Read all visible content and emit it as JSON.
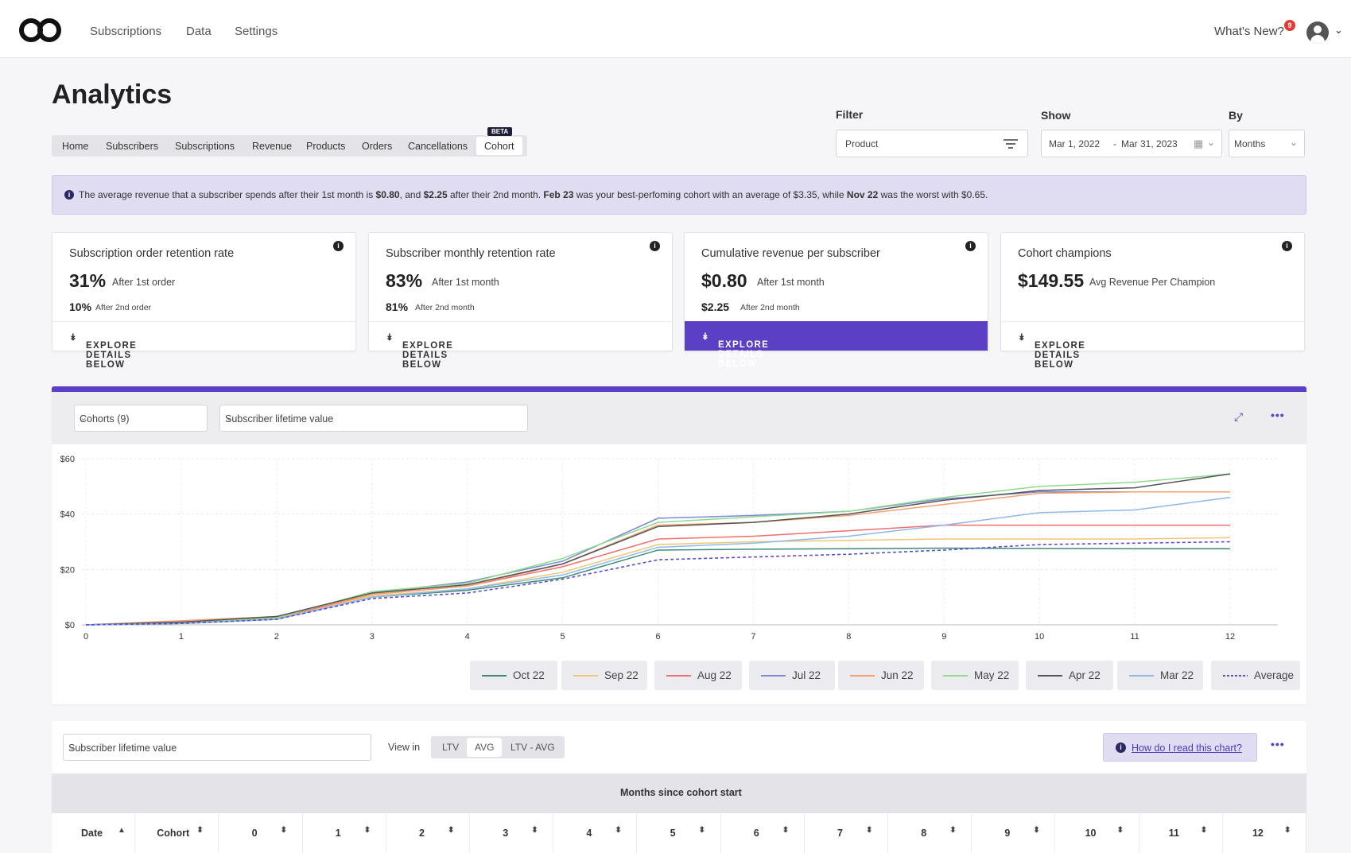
{
  "nav": {
    "items": [
      "Subscriptions",
      "Data",
      "Settings"
    ],
    "whats_new": "What's New?",
    "notification_count": "9"
  },
  "page": {
    "title": "Analytics"
  },
  "subtabs": {
    "items": [
      "Home",
      "Subscribers",
      "Subscriptions",
      "Revenue",
      "Products",
      "Orders",
      "Cancellations",
      "Cohort"
    ],
    "active": "Cohort",
    "beta_label": "BETA"
  },
  "filters": {
    "filter_label": "Filter",
    "filter_value": "Product",
    "show_label": "Show",
    "date_start": "Mar 1, 2022",
    "date_sep": "-",
    "date_end": "Mar 31, 2023",
    "by_label": "By",
    "by_value": "Months"
  },
  "banner": {
    "t1": "The average revenue that a subscriber spends after their 1st month is ",
    "b1": "$0.80",
    "t2": ", and ",
    "b2": "$2.25",
    "t3": " after their 2nd month. ",
    "b3": "Feb 23",
    "t4": " was your best-perfoming cohort with an average of $3.35, while ",
    "b4": "Nov 22",
    "t5": " was the worst with $0.65."
  },
  "cards": [
    {
      "title": "Subscription order retention rate",
      "big": "31%",
      "big_sub": "After 1st order",
      "small": "10%",
      "small_sub": "After 2nd order",
      "cta": "EXPLORE DETAILS BELOW",
      "active": false
    },
    {
      "title": "Subscriber monthly retention rate",
      "big": "83%",
      "big_sub": "After 1st month",
      "small": "81%",
      "small_sub": "After 2nd month",
      "cta": "EXPLORE DETAILS BELOW",
      "active": false
    },
    {
      "title": "Cumulative revenue per subscriber",
      "big": "$0.80",
      "big_sub": "After 1st month",
      "small": "$2.25",
      "small_sub": "After 2nd month",
      "cta": "EXPLORE DETAILS BELOW",
      "active": true
    },
    {
      "title": "Cohort champions",
      "big": "$149.55",
      "big_sub": "Avg Revenue Per Champion",
      "small": "",
      "small_sub": "",
      "cta": "EXPLORE DETAILS BELOW",
      "active": false
    }
  ],
  "chart_toolbar": {
    "cohorts_select": "Cohorts (9)",
    "metric_select": "Subscriber lifetime value"
  },
  "chart_data": {
    "type": "line",
    "title": "",
    "xlabel": "",
    "ylabel": "",
    "x": [
      0,
      1,
      2,
      3,
      4,
      5,
      6,
      7,
      8,
      9,
      10,
      11,
      12
    ],
    "ylim": [
      0,
      60
    ],
    "yticks": [
      "$0",
      "$20",
      "$40",
      "$60"
    ],
    "grid": true,
    "legend_position": "bottom",
    "series": [
      {
        "name": "Oct 22",
        "color": "#3c8a78",
        "dashed": false,
        "values": [
          0,
          0.5,
          2,
          10,
          12.5,
          17,
          27,
          27.3,
          27.5,
          27.7,
          27.6,
          27.5,
          27.5
        ]
      },
      {
        "name": "Sep 22",
        "color": "#f0c775",
        "dashed": false,
        "values": [
          0,
          1,
          2.5,
          10.5,
          13,
          19,
          29,
          30,
          30.5,
          31,
          31,
          31,
          31.5
        ]
      },
      {
        "name": "Aug 22",
        "color": "#ef6f6f",
        "dashed": false,
        "values": [
          0,
          1,
          2.5,
          11,
          14,
          21,
          31,
          32,
          34,
          36,
          36,
          36,
          36
        ]
      },
      {
        "name": "Jul 22",
        "color": "#7b89d6",
        "dashed": false,
        "values": [
          0,
          1,
          3,
          11.5,
          15.5,
          23,
          38.5,
          39.5,
          41,
          45.5,
          48,
          48,
          48
        ]
      },
      {
        "name": "Jun 22",
        "color": "#f5a172",
        "dashed": false,
        "values": [
          0,
          1.5,
          3,
          11,
          14,
          22,
          36,
          37,
          39.5,
          43.5,
          47.5,
          48,
          48
        ]
      },
      {
        "name": "May 22",
        "color": "#8edb8e",
        "dashed": false,
        "values": [
          0,
          1,
          2.5,
          12,
          15,
          24,
          37,
          39,
          41,
          46,
          50,
          51.5,
          54.5
        ]
      },
      {
        "name": "Apr 22",
        "color": "#555555",
        "dashed": false,
        "values": [
          0,
          1,
          3,
          11.5,
          14.5,
          22,
          35.5,
          37,
          40,
          45,
          48.5,
          49.5,
          54.5
        ]
      },
      {
        "name": "Mar 22",
        "color": "#8fb8ea",
        "dashed": false,
        "values": [
          0,
          0.5,
          2,
          10,
          13,
          18,
          28,
          29.5,
          32,
          36,
          40.5,
          41.5,
          46
        ]
      },
      {
        "name": "Average",
        "color": "#5b4fd0",
        "dashed": true,
        "values": [
          0,
          0.5,
          2,
          9.5,
          11.5,
          16.5,
          23.5,
          24.5,
          25.5,
          27,
          29,
          29.5,
          30
        ]
      }
    ]
  },
  "table_toolbar": {
    "metric_select": "Subscriber lifetime value",
    "view_in_label": "View in",
    "view_options": [
      "LTV",
      "AVG",
      "LTV - AVG"
    ],
    "view_active": "AVG",
    "help_link": "How do I read this chart?"
  },
  "table": {
    "band_title": "Months since cohort start",
    "columns": [
      "Date",
      "Cohort",
      "0",
      "1",
      "2",
      "3",
      "4",
      "5",
      "6",
      "7",
      "8",
      "9",
      "10",
      "11",
      "12"
    ]
  }
}
